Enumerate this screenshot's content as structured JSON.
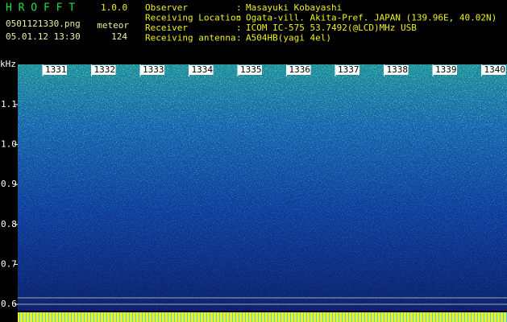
{
  "header": {
    "app": "H R O F F T",
    "version": "1.0.0",
    "file": "0501121330.png",
    "mode": "meteor",
    "count": "124",
    "datetime": "05.01.12 13:30",
    "info": [
      {
        "label": "Observer",
        "sep": ":",
        "value": "Masayuki Kobayashi"
      },
      {
        "label": "Receiving Location",
        "sep": ":",
        "value": "Ogata-vill. Akita-Pref. JAPAN (139.96E, 40.02N)"
      },
      {
        "label": "Receiver",
        "sep": ":",
        "value": "ICOM IC-575 53.7492(@LCD)MHz USB"
      },
      {
        "label": "Receiving antenna",
        "sep": ":",
        "value": "A504HB(yagi 4el)"
      }
    ]
  },
  "plot": {
    "y_unit": "kHz",
    "time_ticks": [
      "1331",
      "1332",
      "1333",
      "1334",
      "1335",
      "1336",
      "1337",
      "1338",
      "1339",
      "1340"
    ],
    "freq_ticks": [
      "1.1",
      "1.0",
      "0.9",
      "0.8",
      "0.7",
      "0.6"
    ]
  }
}
